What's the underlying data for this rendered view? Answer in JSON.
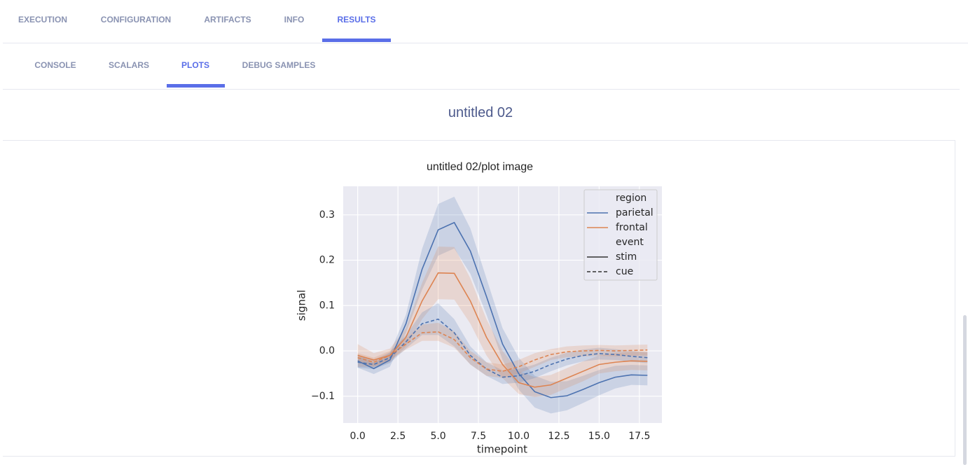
{
  "tabs": [
    "EXECUTION",
    "CONFIGURATION",
    "ARTIFACTS",
    "INFO",
    "RESULTS"
  ],
  "subtabs": [
    "CONSOLE",
    "SCALARS",
    "PLOTS",
    "DEBUG SAMPLES"
  ],
  "section_title": "untitled 02",
  "chart_data": {
    "type": "line",
    "title": "untitled 02/plot image",
    "x_label": "timepoint",
    "y_label": "signal",
    "x": [
      0,
      1,
      2,
      3,
      4,
      5,
      6,
      7,
      8,
      9,
      10,
      11,
      12,
      13,
      14,
      15,
      16,
      17,
      18
    ],
    "xlim": [
      -0.9,
      18.9
    ],
    "ylim": [
      -0.159,
      0.363
    ],
    "xticks": [
      {
        "value": 0,
        "label": "0.0"
      },
      2.5,
      {
        "value": 5,
        "label": "5.0"
      },
      7.5,
      {
        "value": 10,
        "label": "10.0"
      },
      12.5,
      {
        "value": 15,
        "label": "15.0"
      },
      17.5
    ],
    "yticks": [
      {
        "value": -0.1,
        "label": "−0.1"
      },
      {
        "value": 0,
        "label": "0.0"
      },
      0.1,
      0.2,
      0.3
    ],
    "grid": true,
    "legend_position": "upper right",
    "legend": {
      "hue_title": "region",
      "hue": [
        {
          "name": "parietal",
          "color": "#4c72b0"
        },
        {
          "name": "frontal",
          "color": "#dd8452"
        }
      ],
      "style_title": "event",
      "styles": [
        {
          "name": "stim",
          "dash": "solid"
        },
        {
          "name": "cue",
          "dash": "dashed"
        }
      ]
    },
    "series": [
      {
        "region": "parietal",
        "event": "stim",
        "values": [
          -0.022,
          -0.039,
          -0.02,
          0.06,
          0.18,
          0.267,
          0.283,
          0.22,
          0.12,
          0.015,
          -0.05,
          -0.09,
          -0.103,
          -0.099,
          -0.085,
          -0.07,
          -0.058,
          -0.053,
          -0.054
        ],
        "ci": [
          0.015,
          0.012,
          0.015,
          0.02,
          0.045,
          0.057,
          0.057,
          0.05,
          0.04,
          0.035,
          0.035,
          0.035,
          0.035,
          0.032,
          0.03,
          0.028,
          0.025,
          0.022,
          0.022
        ]
      },
      {
        "region": "frontal",
        "event": "stim",
        "values": [
          -0.01,
          -0.02,
          -0.01,
          0.03,
          0.11,
          0.172,
          0.171,
          0.11,
          0.03,
          -0.03,
          -0.07,
          -0.08,
          -0.075,
          -0.06,
          -0.045,
          -0.03,
          -0.025,
          -0.022,
          -0.023
        ],
        "ci": [
          0.025,
          0.015,
          0.015,
          0.02,
          0.04,
          0.058,
          0.058,
          0.05,
          0.04,
          0.03,
          0.025,
          0.022,
          0.022,
          0.022,
          0.022,
          0.02,
          0.02,
          0.02,
          0.02
        ]
      },
      {
        "region": "parietal",
        "event": "cue",
        "values": [
          -0.025,
          -0.03,
          -0.015,
          0.02,
          0.06,
          0.07,
          0.04,
          -0.01,
          -0.04,
          -0.058,
          -0.055,
          -0.045,
          -0.03,
          -0.018,
          -0.01,
          -0.006,
          -0.008,
          -0.012,
          -0.015
        ],
        "ci": [
          0.012,
          0.01,
          0.012,
          0.015,
          0.025,
          0.035,
          0.03,
          0.02,
          0.015,
          0.015,
          0.015,
          0.015,
          0.015,
          0.014,
          0.013,
          0.013,
          0.012,
          0.012,
          0.012
        ]
      },
      {
        "region": "frontal",
        "event": "cue",
        "values": [
          -0.015,
          -0.025,
          -0.01,
          0.015,
          0.04,
          0.042,
          0.025,
          -0.015,
          -0.04,
          -0.045,
          -0.035,
          -0.02,
          -0.008,
          -0.002,
          0.0,
          0.001,
          0.0,
          0.001,
          0.002
        ],
        "ci": [
          0.01,
          0.01,
          0.01,
          0.012,
          0.018,
          0.02,
          0.018,
          0.015,
          0.015,
          0.015,
          0.015,
          0.015,
          0.012,
          0.012,
          0.012,
          0.012,
          0.012,
          0.012,
          0.012
        ]
      }
    ]
  }
}
